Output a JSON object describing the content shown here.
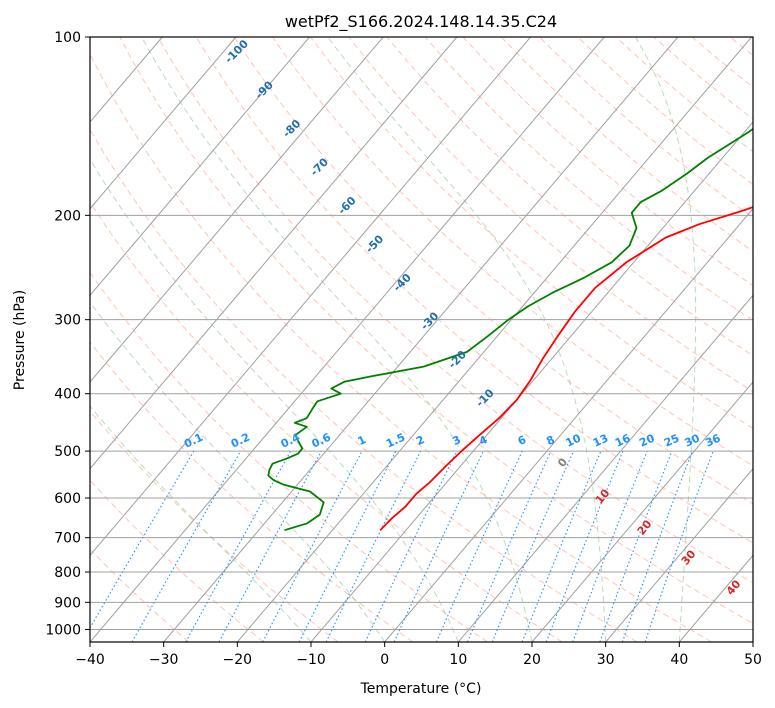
{
  "chart_data": {
    "type": "line",
    "title": "wetPf2_S166.2024.148.14.35.C24",
    "xlabel": "Temperature (°C)",
    "ylabel": "Pressure (hPa)",
    "xlim": [
      -40,
      50
    ],
    "ylim": [
      1050,
      100
    ],
    "y_scale": "log",
    "grid": true,
    "x_ticks": [
      -40,
      -30,
      -20,
      -10,
      0,
      10,
      20,
      30,
      40,
      50
    ],
    "y_ticks": [
      100,
      200,
      300,
      400,
      500,
      600,
      700,
      800,
      900,
      1000
    ],
    "series": [
      {
        "color": "#ff0000",
        "points": [
          [
            -13.5,
            680
          ],
          [
            -13.3,
            650
          ],
          [
            -12.8,
            620
          ],
          [
            -12.8,
            590
          ],
          [
            -12.3,
            565
          ],
          [
            -12.0,
            530
          ],
          [
            -11.6,
            500
          ],
          [
            -11.0,
            470
          ],
          [
            -10.3,
            440
          ],
          [
            -10.0,
            410
          ],
          [
            -10.4,
            380
          ],
          [
            -11.2,
            350
          ],
          [
            -11.8,
            320
          ],
          [
            -12.3,
            290
          ],
          [
            -12.3,
            265
          ],
          [
            -11.0,
            240
          ],
          [
            -8.5,
            218
          ],
          [
            -5.5,
            207
          ],
          [
            -1.0,
            196
          ],
          [
            3.0,
            185
          ],
          [
            6.0,
            172
          ],
          [
            9.0,
            155
          ],
          [
            11.5,
            140
          ],
          [
            15.0,
            125
          ],
          [
            18.5,
            110
          ],
          [
            21.0,
            100
          ]
        ]
      },
      {
        "color": "#008000",
        "points": [
          [
            -26.5,
            680
          ],
          [
            -24.2,
            662
          ],
          [
            -23.5,
            640
          ],
          [
            -24.4,
            610
          ],
          [
            -27.5,
            585
          ],
          [
            -31.8,
            570
          ],
          [
            -33.7,
            560
          ],
          [
            -35.0,
            550
          ],
          [
            -35.5,
            538
          ],
          [
            -35.8,
            525
          ],
          [
            -34.5,
            515
          ],
          [
            -33.5,
            505
          ],
          [
            -33.5,
            495
          ],
          [
            -34.5,
            485
          ],
          [
            -36.0,
            470
          ],
          [
            -35.4,
            455
          ],
          [
            -37.5,
            448
          ],
          [
            -36.4,
            440
          ],
          [
            -36.7,
            425
          ],
          [
            -36.9,
            412
          ],
          [
            -34.6,
            400
          ],
          [
            -36.5,
            392
          ],
          [
            -35.5,
            382
          ],
          [
            -32.5,
            374
          ],
          [
            -26.5,
            360
          ],
          [
            -22.3,
            340
          ],
          [
            -21.3,
            320
          ],
          [
            -20.4,
            300
          ],
          [
            -19.3,
            285
          ],
          [
            -17.5,
            270
          ],
          [
            -15.0,
            255
          ],
          [
            -13.0,
            240
          ],
          [
            -12.5,
            225
          ],
          [
            -13.6,
            210
          ],
          [
            -16.0,
            198
          ],
          [
            -16.0,
            190
          ],
          [
            -14.5,
            182
          ],
          [
            -13.0,
            170
          ],
          [
            -12.0,
            160
          ],
          [
            -9.5,
            145
          ],
          [
            -8.0,
            135
          ],
          [
            -5.5,
            125
          ],
          [
            -3.0,
            115
          ],
          [
            1.0,
            108
          ],
          [
            3.5,
            100
          ]
        ]
      }
    ],
    "dry_adiabat_labels": [
      "-100",
      "-90",
      "-80",
      "-70",
      "-60",
      "-50",
      "-40",
      "-30",
      "-20",
      "-10"
    ],
    "mixing_ratio_labels": [
      "0.1",
      "0.2",
      "0.4",
      "0.6",
      "1",
      "1.5",
      "2",
      "3",
      "4",
      "6",
      "8",
      "10",
      "13",
      "16",
      "20",
      "25",
      "30",
      "36"
    ],
    "moist_adiabat_labels": [
      "0",
      "10",
      "20",
      "30",
      "40"
    ],
    "colors": {
      "temperature": "#ff0000",
      "dewpoint": "#008000",
      "isotherm": "#a0a0a0",
      "dry_adiabat": "#ff9f80",
      "moist_adiabat": "#80c080",
      "mixing_ratio": "#1e90ff",
      "dry_label": "#1f6fb0",
      "mixing_label": "#1e90ff",
      "moist_label": "#d62728"
    }
  }
}
